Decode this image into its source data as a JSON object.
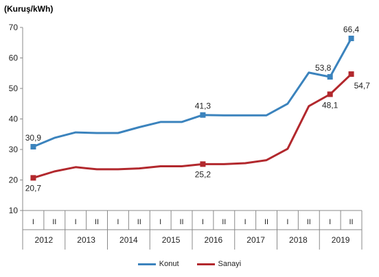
{
  "chart_data": {
    "type": "line",
    "unit_label": "(Kuruş/kWh)",
    "ylim": [
      10,
      70
    ],
    "yticks": [
      10,
      20,
      30,
      40,
      50,
      60,
      70
    ],
    "categories": [
      "I",
      "II",
      "I",
      "II",
      "I",
      "II",
      "I",
      "II",
      "I",
      "II",
      "I",
      "II",
      "I",
      "II",
      "I",
      "II"
    ],
    "years": [
      "2012",
      "2013",
      "2014",
      "2015",
      "2016",
      "2017",
      "2018",
      "2019"
    ],
    "series": [
      {
        "name": "Konut",
        "color": "#3b83bd",
        "values": [
          30.9,
          33.8,
          35.6,
          35.4,
          35.4,
          37.3,
          39,
          39,
          41.3,
          41.2,
          41.2,
          41.2,
          45,
          55.2,
          53.8,
          66.4
        ],
        "labels": {
          "0": "30,9",
          "8": "41,3",
          "14": "53,8",
          "15": "66,4"
        }
      },
      {
        "name": "Sanayi",
        "color": "#b2282d",
        "values": [
          20.7,
          22.8,
          24.2,
          23.5,
          23.5,
          23.8,
          24.5,
          24.5,
          25.2,
          25.2,
          25.5,
          26.5,
          30.2,
          44.2,
          48.1,
          54.7
        ],
        "labels": {
          "0": "20,7",
          "8": "25,2",
          "14": "48,1",
          "15": "54,7"
        }
      }
    ],
    "grid": false,
    "legend_position": "bottom"
  }
}
